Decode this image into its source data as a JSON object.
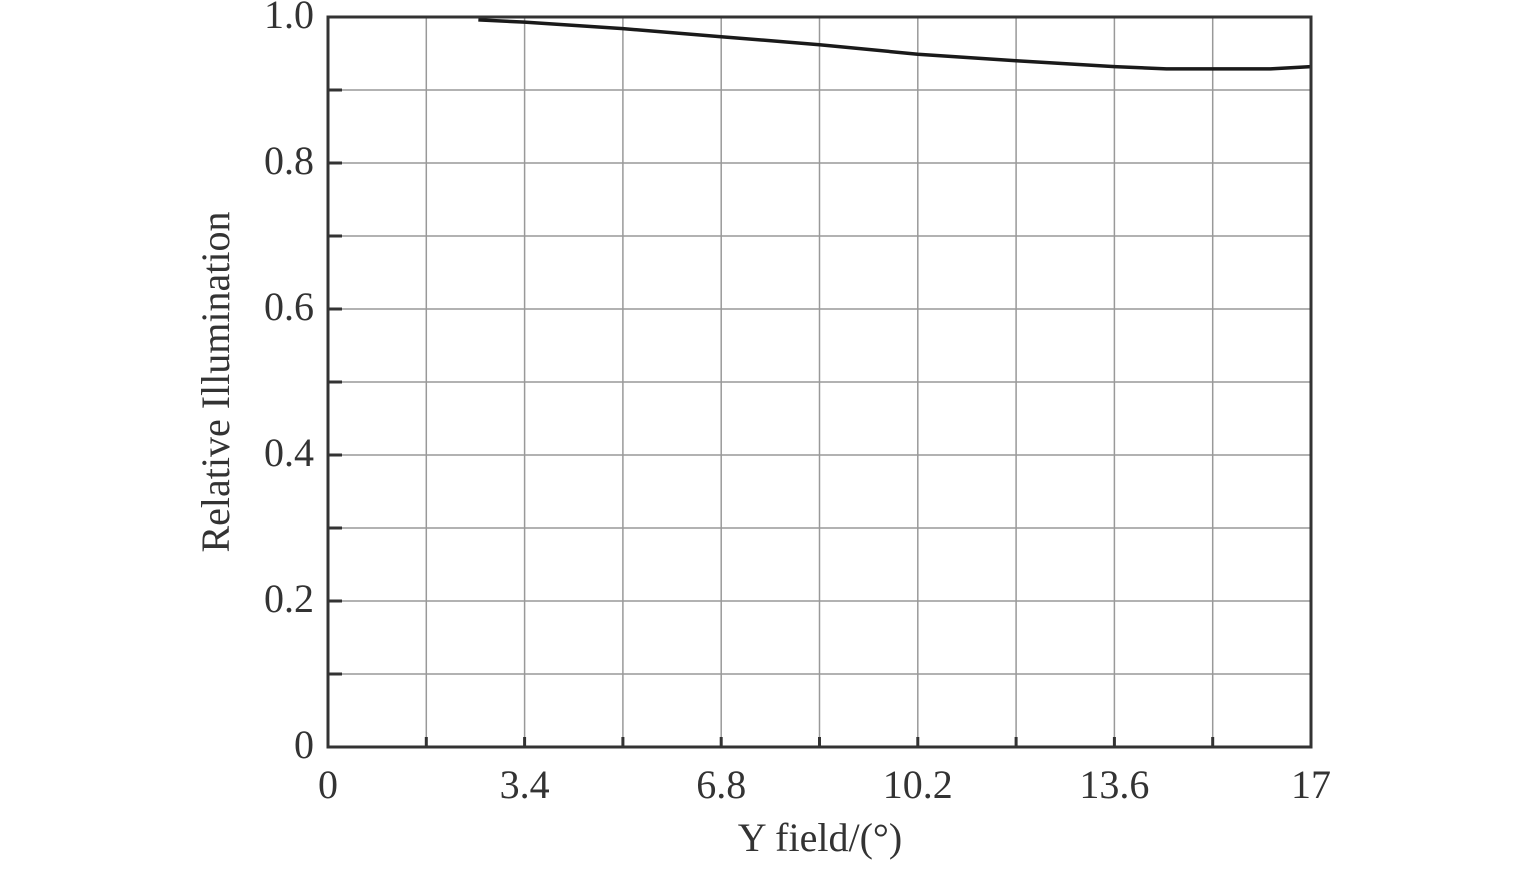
{
  "chart_data": {
    "type": "line",
    "x_label": "Y field/(°)",
    "y_label": "Relative Illumination",
    "x": [
      2.6,
      3.4,
      5.1,
      6.8,
      8.5,
      10.2,
      11.9,
      13.6,
      14.5,
      15.3,
      16.3,
      17
    ],
    "series": [
      {
        "name": "Relative Illumination",
        "color": "#1a1a1a",
        "values": [
          0.996,
          0.993,
          0.984,
          0.973,
          0.962,
          0.949,
          0.94,
          0.932,
          0.929,
          0.929,
          0.929,
          0.932
        ]
      }
    ],
    "xlim": [
      0,
      17
    ],
    "xticks": [
      0,
      3.4,
      6.8,
      10.2,
      13.6,
      17
    ],
    "xminor_ticks": [
      1.7,
      5.1,
      8.5,
      11.9,
      15.3
    ],
    "ylim": [
      0,
      1
    ],
    "yticks": [
      0,
      0.2,
      0.4,
      0.6,
      0.8,
      {
        "value": 1,
        "label": "1.0"
      }
    ],
    "yminor_ticks": [
      0.1,
      0.3,
      0.5,
      0.7,
      0.9
    ],
    "grid": true
  }
}
